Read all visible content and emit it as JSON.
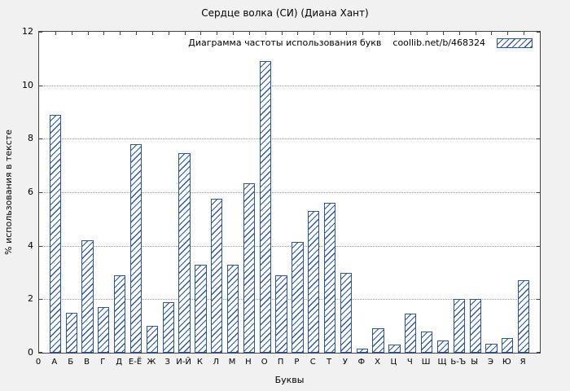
{
  "chart_data": {
    "type": "bar",
    "title": "Сердце волка (СИ) (Диана Хант)",
    "legend_label": "Диаграмма частоты использования букв",
    "legend_source": "coollib.net/b/468324",
    "xlabel": "Буквы",
    "ylabel": "% использования в тексте",
    "ylim": [
      0,
      12
    ],
    "yticks": [
      0,
      2,
      4,
      6,
      8,
      10,
      12
    ],
    "origin_tick_label": "0",
    "grid": true,
    "legend_position": "top-right",
    "bar_color": "#2b55a8",
    "categories": [
      "А",
      "Б",
      "В",
      "Г",
      "Д",
      "Е-Ё",
      "Ж",
      "З",
      "И-Й",
      "К",
      "Л",
      "М",
      "Н",
      "О",
      "П",
      "Р",
      "С",
      "Т",
      "У",
      "Ф",
      "Х",
      "Ц",
      "Ч",
      "Ш",
      "Щ",
      "Ь-Ъ",
      "Ы",
      "Э",
      "Ю",
      "Я"
    ],
    "values": [
      8.9,
      1.5,
      4.2,
      1.7,
      2.9,
      7.8,
      1.0,
      1.9,
      7.45,
      3.3,
      5.75,
      3.3,
      6.35,
      10.9,
      2.9,
      4.15,
      5.3,
      5.6,
      3.0,
      0.15,
      0.9,
      0.3,
      1.45,
      0.8,
      0.45,
      2.0,
      2.0,
      0.35,
      0.55,
      2.7
    ]
  }
}
